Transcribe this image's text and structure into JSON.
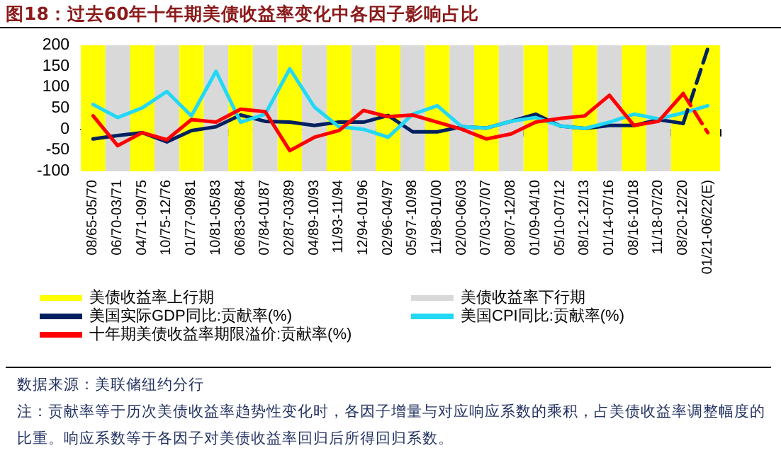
{
  "chart_data": {
    "type": "line",
    "title": "图18：过去60年十年期美债收益率变化中各因子影响占比",
    "categories": [
      "08/65-05/70",
      "06/70-03/71",
      "04/71-09/75",
      "10/75-12/76",
      "01/77-09/81",
      "10/81-05/83",
      "06/83-06/84",
      "07/84-01/87",
      "02/87-03/89",
      "04/89-10/93",
      "11/93-11/94",
      "12/94-01/96",
      "02/96-04/97",
      "05/97-10/98",
      "11/98-01/00",
      "02/00-06/03",
      "07/03-07/07",
      "08/07-12/08",
      "01/09-04/10",
      "05/10-07/12",
      "08/12-12/13",
      "01/14-07/16",
      "08/16-10/18",
      "11/18-07/20",
      "08/20-12/20",
      "01/21-06/22(E)"
    ],
    "series": [
      {
        "name": "美国实际GDP同比:贡献率(%)",
        "color": "#002060",
        "line_style": "solid",
        "values": [
          -23,
          -15,
          -8,
          -30,
          -3,
          6,
          34,
          19,
          17,
          9,
          17,
          17,
          33,
          -6,
          -6,
          6,
          3,
          19,
          36,
          8,
          2,
          9,
          9,
          23,
          14,
          null
        ]
      },
      {
        "name": "美国CPI同比:贡献率(%)",
        "color": "#22d8f5",
        "line_style": "solid",
        "values": [
          59,
          28,
          51,
          90,
          32,
          138,
          17,
          36,
          144,
          53,
          6,
          0,
          -19,
          36,
          56,
          6,
          3,
          19,
          28,
          8,
          2,
          17,
          36,
          25,
          39,
          56
        ]
      },
      {
        "name": "十年期美债收益率期限溢价:贡献率(%)",
        "color": "#ff0000",
        "line_style": "solid",
        "values": [
          32,
          -39,
          -8,
          -25,
          23,
          17,
          48,
          42,
          -51,
          -19,
          -3,
          45,
          30,
          34,
          17,
          0,
          -23,
          -11,
          17,
          26,
          32,
          81,
          9,
          19,
          85,
          null
        ]
      },
      {
        "color": "#002060",
        "line_style": "dashed",
        "values": [
          null,
          null,
          null,
          null,
          null,
          null,
          null,
          null,
          null,
          null,
          null,
          null,
          null,
          null,
          null,
          null,
          null,
          null,
          null,
          null,
          null,
          null,
          null,
          null,
          14,
          192
        ]
      },
      {
        "color": "#ff0000",
        "line_style": "dashed",
        "values": [
          null,
          null,
          null,
          null,
          null,
          null,
          null,
          null,
          null,
          null,
          null,
          null,
          null,
          null,
          null,
          null,
          null,
          null,
          null,
          null,
          null,
          null,
          null,
          null,
          85,
          -8
        ]
      }
    ],
    "bands": [
      {
        "axis": "x",
        "from": "08/65-05/70",
        "to": "08/65-05/70",
        "label": "美债收益率上行期",
        "color": "#ffff00"
      },
      {
        "axis": "x",
        "from": "06/70-03/71",
        "to": "06/70-03/71",
        "label": "美债收益率下行期",
        "color": "#d9d9d9"
      },
      {
        "axis": "x",
        "from": "04/71-09/75",
        "to": "04/71-09/75",
        "color": "#ffff00"
      },
      {
        "axis": "x",
        "from": "10/75-12/76",
        "to": "10/75-12/76",
        "color": "#d9d9d9"
      },
      {
        "axis": "x",
        "from": "01/77-09/81",
        "to": "01/77-09/81",
        "color": "#ffff00"
      },
      {
        "axis": "x",
        "from": "10/81-05/83",
        "to": "10/81-05/83",
        "color": "#d9d9d9"
      },
      {
        "axis": "x",
        "from": "06/83-06/84",
        "to": "06/83-06/84",
        "color": "#ffff00"
      },
      {
        "axis": "x",
        "from": "07/84-01/87",
        "to": "07/84-01/87",
        "color": "#d9d9d9"
      },
      {
        "axis": "x",
        "from": "02/87-03/89",
        "to": "02/87-03/89",
        "color": "#ffff00"
      },
      {
        "axis": "x",
        "from": "04/89-10/93",
        "to": "04/89-10/93",
        "color": "#d9d9d9"
      },
      {
        "axis": "x",
        "from": "11/93-11/94",
        "to": "11/93-11/94",
        "color": "#ffff00"
      },
      {
        "axis": "x",
        "from": "12/94-01/96",
        "to": "12/94-01/96",
        "color": "#d9d9d9"
      },
      {
        "axis": "x",
        "from": "02/96-04/97",
        "to": "02/96-04/97",
        "color": "#ffff00"
      },
      {
        "axis": "x",
        "from": "05/97-10/98",
        "to": "05/97-10/98",
        "color": "#d9d9d9"
      },
      {
        "axis": "x",
        "from": "11/98-01/00",
        "to": "11/98-01/00",
        "color": "#ffff00"
      },
      {
        "axis": "x",
        "from": "02/00-06/03",
        "to": "02/00-06/03",
        "color": "#d9d9d9"
      },
      {
        "axis": "x",
        "from": "07/03-07/07",
        "to": "07/03-07/07",
        "color": "#ffff00"
      },
      {
        "axis": "x",
        "from": "08/07-12/08",
        "to": "08/07-12/08",
        "color": "#d9d9d9"
      },
      {
        "axis": "x",
        "from": "01/09-04/10",
        "to": "01/09-04/10",
        "color": "#ffff00"
      },
      {
        "axis": "x",
        "from": "05/10-07/12",
        "to": "05/10-07/12",
        "color": "#d9d9d9"
      },
      {
        "axis": "x",
        "from": "08/12-12/13",
        "to": "08/12-12/13",
        "color": "#ffff00"
      },
      {
        "axis": "x",
        "from": "01/14-07/16",
        "to": "01/14-07/16",
        "color": "#d9d9d9"
      },
      {
        "axis": "x",
        "from": "08/16-10/18",
        "to": "08/16-10/18",
        "color": "#ffff00"
      },
      {
        "axis": "x",
        "from": "11/18-07/20",
        "to": "11/18-07/20",
        "color": "#d9d9d9"
      },
      {
        "axis": "x",
        "from": "08/20-12/20",
        "to": "01/21-06/22(E)",
        "color": "#ffff00"
      }
    ],
    "ylim": [
      -100,
      200
    ],
    "yticks": [
      -100,
      -50,
      0,
      50,
      100,
      150,
      200
    ],
    "legend": "bottom",
    "marker": "none",
    "annotations": [
      "数据来源：美联储纽约分行",
      "注：贡献率等于历次美债收益率趋势性变化时，各因子增量与对应响应系数的乘积，占美债收益率调整幅度的比重。响应系数等于各因子对美债收益率回归后所得回归系数。"
    ]
  }
}
